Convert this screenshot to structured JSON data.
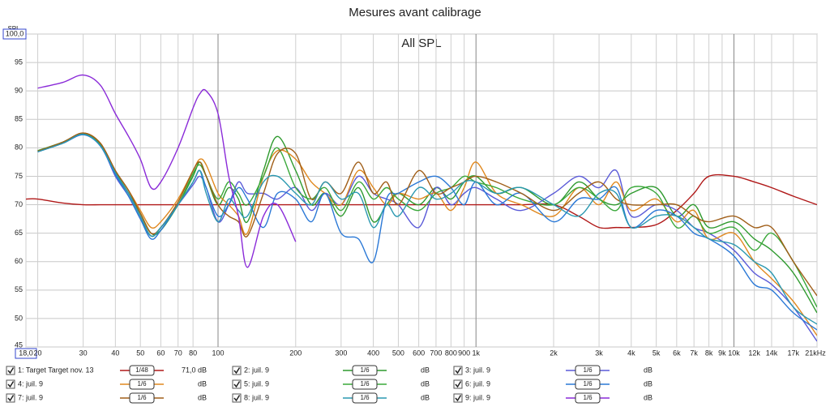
{
  "chart_data": {
    "type": "line",
    "title": "Mesures avant calibrage",
    "subtitle": "All SPL",
    "y_label": "SPL",
    "log_x": true,
    "grid": true,
    "xlim": [
      18,
      21000
    ],
    "ylim": [
      45,
      100
    ],
    "xticks": [
      {
        "value": 18,
        "label": "18,0"
      },
      20,
      30,
      40,
      50,
      60,
      70,
      80,
      100,
      200,
      300,
      400,
      500,
      600,
      700,
      800,
      900,
      {
        "value": 1000,
        "label": "1k"
      },
      {
        "value": 2000,
        "label": "2k"
      },
      {
        "value": 3000,
        "label": "3k"
      },
      {
        "value": 4000,
        "label": "4k"
      },
      {
        "value": 5000,
        "label": "5k"
      },
      {
        "value": 6000,
        "label": "6k"
      },
      {
        "value": 7000,
        "label": "7k"
      },
      {
        "value": 8000,
        "label": "8k"
      },
      {
        "value": 9000,
        "label": "9k"
      },
      {
        "value": 10000,
        "label": "10k"
      },
      {
        "value": 12000,
        "label": "12k"
      },
      {
        "value": 14000,
        "label": "14k"
      },
      {
        "value": 17000,
        "label": "17k"
      },
      {
        "value": 21000,
        "label": "21kHz"
      }
    ],
    "yticks": [
      45,
      50,
      55,
      60,
      65,
      70,
      75,
      80,
      85,
      90,
      95,
      {
        "value": 100,
        "label": "100,0"
      }
    ],
    "x": [
      18,
      20,
      25,
      30,
      35,
      40,
      45,
      50,
      55,
      60,
      70,
      80,
      85,
      90,
      100,
      110,
      120,
      130,
      150,
      170,
      200,
      230,
      260,
      300,
      350,
      400,
      450,
      500,
      600,
      700,
      800,
      900,
      1000,
      1200,
      1500,
      2000,
      2500,
      3000,
      3500,
      4000,
      5000,
      6000,
      7000,
      8000,
      10000,
      12000,
      14000,
      17000,
      21000
    ],
    "series": [
      {
        "name": "1: Target Target nov. 13",
        "color": "#b01818",
        "smoothing": "1/48",
        "readout": "71,0 dB",
        "values": [
          71,
          71,
          70.3,
          70,
          70,
          70,
          70,
          70,
          70,
          70,
          70,
          70,
          70,
          70,
          70,
          70,
          70,
          70,
          70,
          70,
          70,
          70,
          70,
          70,
          70,
          70,
          70,
          70,
          70,
          70,
          70,
          70,
          70,
          70,
          70,
          70,
          68,
          66,
          66,
          66,
          66.5,
          69,
          72,
          75,
          75,
          74,
          73,
          71.5,
          70
        ]
      },
      {
        "name": "2: juil. 9",
        "color": "#2e9a2e",
        "smoothing": "1/6",
        "readout": "dB",
        "values": [
          null,
          79.5,
          81,
          82.4,
          80.5,
          75.5,
          72,
          68.5,
          65,
          65.5,
          70,
          75,
          77.5,
          75,
          70,
          73,
          71,
          67,
          76,
          82,
          76,
          70,
          72,
          68,
          73,
          67,
          70,
          72,
          70,
          73,
          71,
          74,
          75,
          72,
          73,
          70,
          74,
          71,
          70,
          72,
          73,
          68,
          70,
          66,
          67,
          64,
          62,
          58,
          51
        ]
      },
      {
        "name": "3: juil. 9",
        "color": "#5a5ad8",
        "smoothing": "1/6",
        "readout": "dB",
        "values": [
          null,
          79.3,
          80.8,
          82.3,
          80.5,
          75,
          71.5,
          67.5,
          64.5,
          66,
          70,
          73.5,
          75,
          73,
          67,
          70,
          74,
          72,
          72,
          71,
          73,
          69,
          72,
          70,
          75,
          72,
          71,
          70,
          66,
          73,
          70,
          72,
          73,
          71,
          69,
          72,
          75,
          73,
          76,
          68,
          70,
          69,
          66,
          65,
          62,
          58,
          56,
          52,
          46
        ]
      },
      {
        "name": "4: juil. 9",
        "color": "#e0881e",
        "smoothing": "1/6",
        "readout": "dB",
        "values": [
          null,
          79.4,
          81,
          82.6,
          80.8,
          76,
          72.5,
          69,
          66,
          67,
          71,
          76,
          78,
          77,
          72,
          70,
          68,
          65,
          75,
          79.5,
          78,
          74,
          72,
          70,
          76,
          73,
          70,
          72,
          71,
          72,
          69,
          73,
          77.5,
          72,
          70,
          68,
          73,
          70,
          74,
          69,
          71,
          67,
          69,
          64,
          65,
          60,
          57,
          53,
          47
        ]
      },
      {
        "name": "5: juil. 9",
        "color": "#3aa83a",
        "smoothing": "1/6",
        "readout": "dB",
        "values": [
          null,
          79.4,
          81,
          82.5,
          80.6,
          75.8,
          72,
          68,
          64.5,
          66,
          70,
          75.5,
          77,
          75,
          71,
          74,
          72,
          70,
          75,
          80,
          73,
          71,
          73,
          69,
          74,
          71,
          73,
          71,
          69,
          72,
          73,
          75,
          74,
          73,
          71,
          70,
          73,
          71,
          69,
          73,
          72,
          66,
          68,
          65,
          66,
          62,
          65,
          60,
          52
        ]
      },
      {
        "name": "6: juil. 9",
        "color": "#2a78d6",
        "smoothing": "1/6",
        "readout": "dB",
        "values": [
          null,
          79.3,
          80.8,
          82.3,
          80.3,
          75.3,
          71.5,
          67.5,
          64,
          65.5,
          70,
          74,
          76,
          73,
          68,
          70,
          73,
          71,
          66,
          72,
          71,
          67,
          72,
          65,
          64,
          60,
          71,
          72,
          74,
          75,
          73,
          70,
          74,
          70,
          72,
          67,
          71,
          71,
          73,
          66,
          69,
          68,
          65,
          64,
          61,
          56,
          55,
          51,
          48
        ]
      },
      {
        "name": "7: juil. 9",
        "color": "#a05e18",
        "smoothing": "1/6",
        "readout": "dB",
        "values": [
          null,
          79.4,
          81,
          82.6,
          80.8,
          76,
          72.5,
          68.5,
          65,
          66,
          70.5,
          76,
          77.5,
          75,
          70,
          68,
          67,
          64.5,
          72,
          79,
          79,
          71,
          74,
          72,
          77.5,
          72,
          74,
          70,
          76,
          72,
          73,
          74,
          75,
          74,
          72,
          69,
          72,
          74,
          71,
          70,
          70,
          70,
          68,
          67,
          68,
          66,
          66,
          60,
          54
        ]
      },
      {
        "name": "8: juil. 9",
        "color": "#2a98b0",
        "smoothing": "1/6",
        "readout": "dB",
        "values": [
          null,
          79.3,
          80.8,
          82.4,
          80.4,
          75.6,
          72,
          68,
          64.5,
          66,
          70,
          74,
          76,
          72,
          67,
          71,
          69,
          68,
          74,
          75,
          72,
          70,
          74,
          71,
          72,
          66,
          70,
          68,
          73,
          71,
          72,
          74,
          74,
          72,
          73,
          70,
          68,
          72,
          72,
          66,
          68,
          68,
          66,
          64,
          63,
          60,
          58,
          52,
          49
        ]
      },
      {
        "name": "9: juil. 9",
        "color": "#8a2ad8",
        "smoothing": "1/6",
        "readout": "dB",
        "values": [
          null,
          90.5,
          91.5,
          92.8,
          91,
          86,
          82,
          78,
          73,
          74,
          80,
          87,
          89.5,
          90,
          86,
          75,
          68,
          59,
          68,
          70,
          63.5,
          null,
          null,
          null,
          null,
          null,
          null,
          null,
          null,
          null,
          null,
          null,
          null,
          null,
          null,
          null,
          null,
          null,
          null,
          null,
          null,
          null,
          null,
          null,
          null,
          null,
          null,
          null,
          null
        ]
      }
    ]
  }
}
